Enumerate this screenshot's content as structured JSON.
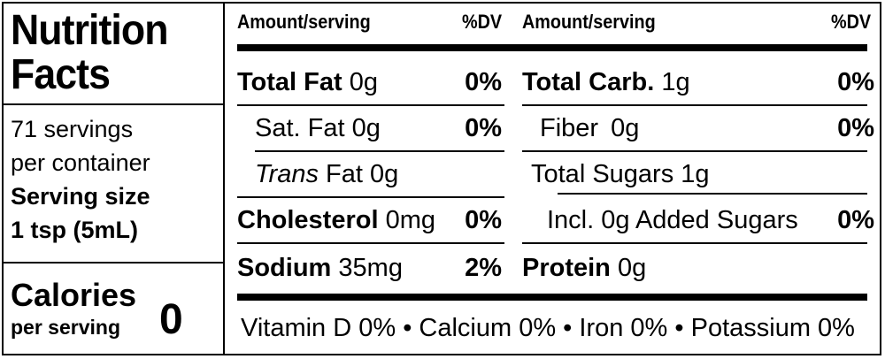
{
  "title_line1": "Nutrition",
  "title_line2": "Facts",
  "servings": {
    "line1": "71 servings",
    "line2": "per container",
    "size_label": "Serving size",
    "size_value": "1 tsp (5mL)"
  },
  "calories": {
    "label": "Calories",
    "sub": "per serving",
    "value": "0"
  },
  "header": {
    "amount_left": "Amount/serving",
    "dv_left": "%DV",
    "amount_right": "Amount/serving",
    "dv_right": "%DV"
  },
  "left_rows": {
    "total_fat": {
      "name": "Total Fat",
      "amount": "0g",
      "dv": "0%"
    },
    "sat_fat": {
      "name": "Sat. Fat",
      "amount": "0g",
      "dv": "0%"
    },
    "trans_fat": {
      "name": "Trans",
      "amount": "Fat 0g"
    },
    "cholesterol": {
      "name": "Cholesterol",
      "amount": "0mg",
      "dv": "0%"
    },
    "sodium": {
      "name": "Sodium",
      "amount": "35mg",
      "dv": "2%"
    }
  },
  "right_rows": {
    "total_carb": {
      "name": "Total Carb.",
      "amount": "1g",
      "dv": "0%"
    },
    "fiber": {
      "name": "Fiber",
      "amount": "0g",
      "dv": "0%"
    },
    "total_sugars": {
      "text": "Total Sugars 1g"
    },
    "added_sugars": {
      "text": "Incl. 0g Added Sugars",
      "dv": "0%"
    },
    "protein": {
      "name": "Protein",
      "amount": "0g"
    }
  },
  "footer": "Vitamin D 0% • Calcium 0% • Iron 0% • Potassium 0%"
}
